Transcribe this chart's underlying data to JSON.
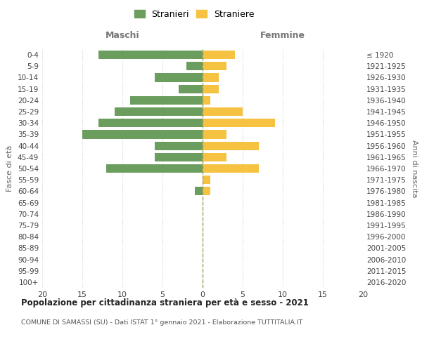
{
  "age_groups": [
    "0-4",
    "5-9",
    "10-14",
    "15-19",
    "20-24",
    "25-29",
    "30-34",
    "35-39",
    "40-44",
    "45-49",
    "50-54",
    "55-59",
    "60-64",
    "65-69",
    "70-74",
    "75-79",
    "80-84",
    "85-89",
    "90-94",
    "95-99",
    "100+"
  ],
  "birth_years": [
    "2016-2020",
    "2011-2015",
    "2006-2010",
    "2001-2005",
    "1996-2000",
    "1991-1995",
    "1986-1990",
    "1981-1985",
    "1976-1980",
    "1971-1975",
    "1966-1970",
    "1961-1965",
    "1956-1960",
    "1951-1955",
    "1946-1950",
    "1941-1945",
    "1936-1940",
    "1931-1935",
    "1926-1930",
    "1921-1925",
    "≤ 1920"
  ],
  "males": [
    13,
    2,
    6,
    3,
    9,
    11,
    13,
    15,
    6,
    6,
    12,
    0,
    1,
    0,
    0,
    0,
    0,
    0,
    0,
    0,
    0
  ],
  "females": [
    4,
    3,
    2,
    2,
    1,
    5,
    9,
    3,
    7,
    3,
    7,
    1,
    1,
    0,
    0,
    0,
    0,
    0,
    0,
    0,
    0
  ],
  "male_color": "#6b9e5e",
  "female_color": "#f5c242",
  "title": "Popolazione per cittadinanza straniera per età e sesso - 2021",
  "subtitle": "COMUNE DI SAMASSI (SU) - Dati ISTAT 1° gennaio 2021 - Elaborazione TUTTITALIA.IT",
  "xlabel_left": "Maschi",
  "xlabel_right": "Femmine",
  "ylabel_left": "Fasce di età",
  "ylabel_right": "Anni di nascita",
  "legend_male": "Stranieri",
  "legend_female": "Straniere",
  "xlim": 20,
  "background_color": "#ffffff",
  "grid_color": "#d0d0d0",
  "centerline_color": "#a0a060"
}
